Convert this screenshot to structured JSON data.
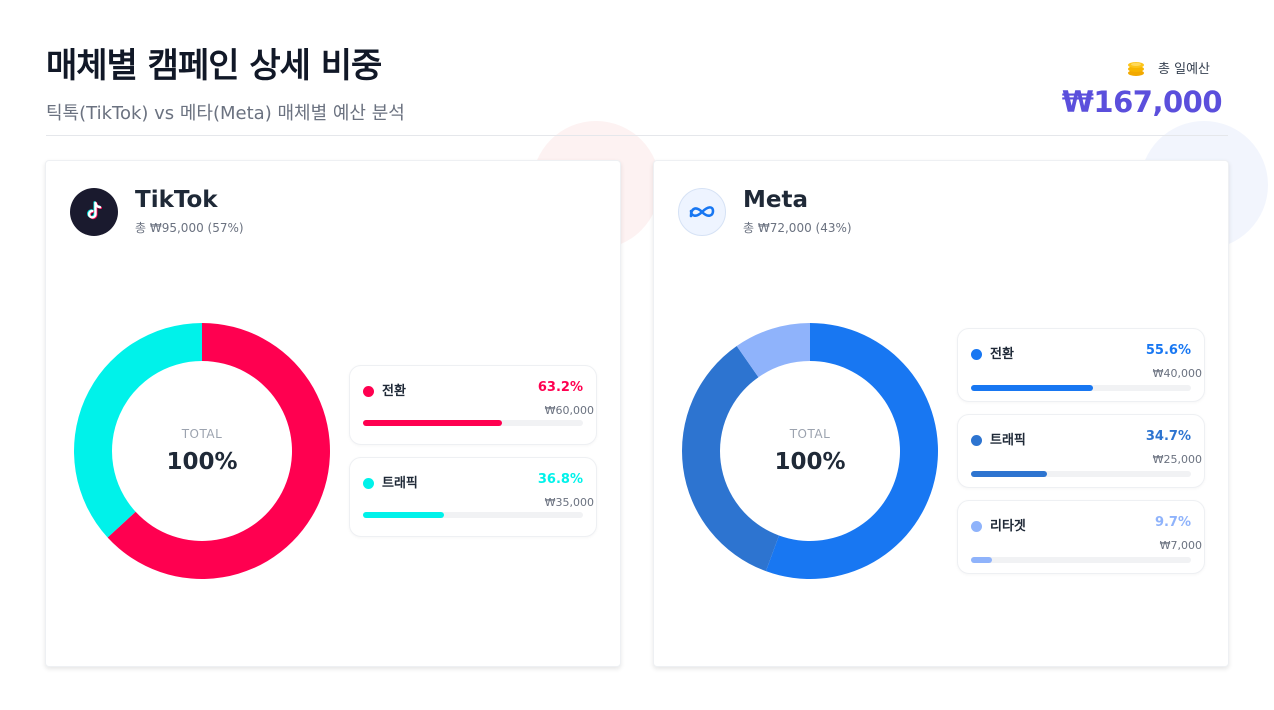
{
  "header": {
    "title": "매체별 캠페인 상세 비중",
    "subtitle": "틱톡(TikTok) vs 메타(Meta) 매체별 예산 분석"
  },
  "total": {
    "label": "총 일예산",
    "value": "₩167,000",
    "icon": "coins-icon",
    "color": "#5b4fdc"
  },
  "tiktok": {
    "name": "TikTok",
    "summary": "총 ₩95,000 (57%)",
    "icon": "tiktok-logo-icon",
    "center_caption": "TOTAL",
    "center_value": "100%"
  },
  "meta": {
    "name": "Meta",
    "summary": "총 ₩72,000 (43%)",
    "icon": "meta-logo-icon",
    "center_caption": "TOTAL",
    "center_value": "100%"
  },
  "chart_data": [
    {
      "type": "pie",
      "series": [
        {
          "name": "전환",
          "value": 63.2,
          "pct_label": "63.2%",
          "amount": "₩60,000",
          "color": "#ff0050"
        },
        {
          "name": "트래픽",
          "value": 36.8,
          "pct_label": "36.8%",
          "amount": "₩35,000",
          "color": "#00f2ea"
        }
      ]
    },
    {
      "type": "pie",
      "series": [
        {
          "name": "전환",
          "value": 55.6,
          "pct_label": "55.6%",
          "amount": "₩40,000",
          "color": "#1877f2"
        },
        {
          "name": "트래픽",
          "value": 34.7,
          "pct_label": "34.7%",
          "amount": "₩25,000",
          "color": "#2d74d0"
        },
        {
          "name": "리타겟",
          "value": 9.7,
          "pct_label": "9.7%",
          "amount": "₩7,000",
          "color": "#8fb3fb"
        }
      ]
    }
  ]
}
